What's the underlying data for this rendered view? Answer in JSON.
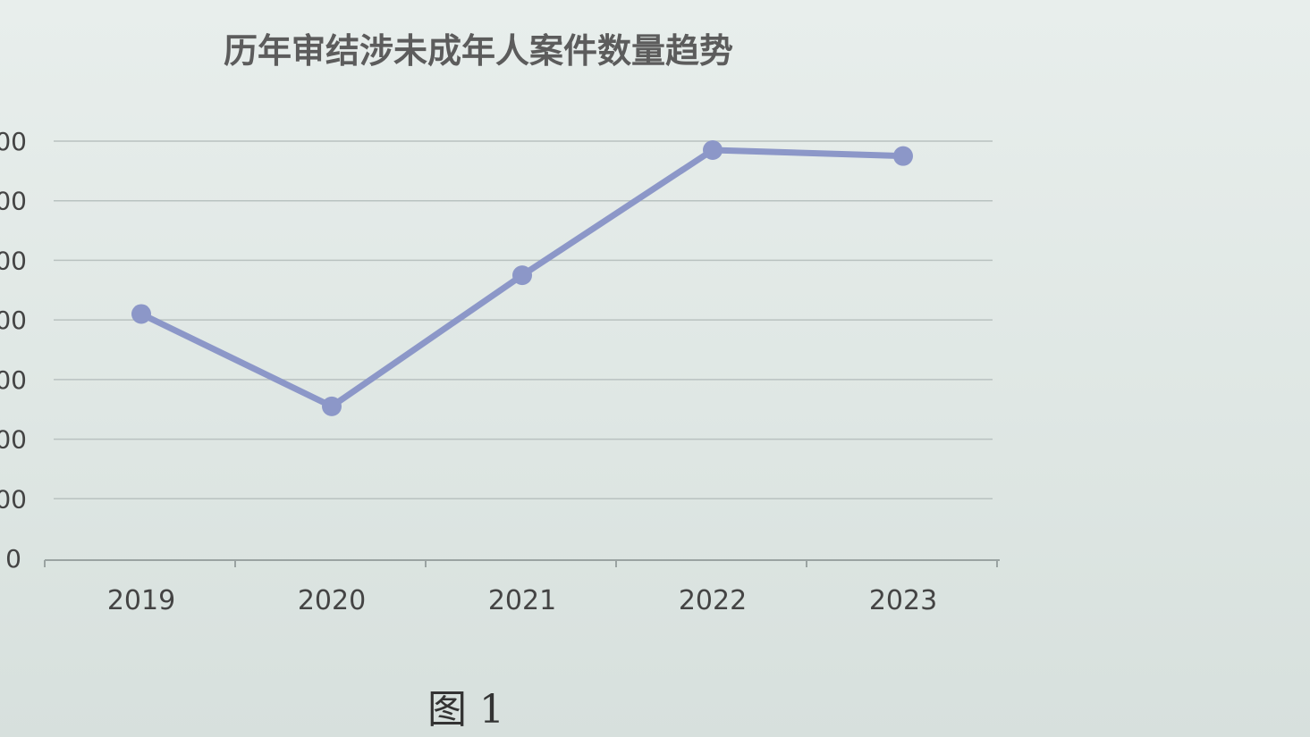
{
  "chart_data": {
    "type": "line",
    "title": "历年审结涉未成年人案件数量趋势",
    "categories": [
      "2019",
      "2020",
      "2021",
      "2022",
      "2023"
    ],
    "series": [
      {
        "values": [
          410,
          255,
          475,
          685,
          675
        ]
      }
    ],
    "ylim": [
      0,
      700
    ],
    "yticks": [
      {
        "value": 0,
        "label": "0"
      },
      {
        "value": 100,
        "label": "00"
      },
      {
        "value": 200,
        "label": "00"
      },
      {
        "value": 300,
        "label": "00"
      },
      {
        "value": 400,
        "label": "00"
      },
      {
        "value": 500,
        "label": "00"
      },
      {
        "value": 600,
        "label": "00"
      },
      {
        "value": 700,
        "label": "00"
      }
    ],
    "grid": true,
    "line_color": "#8c97c8"
  },
  "caption": "图 1"
}
